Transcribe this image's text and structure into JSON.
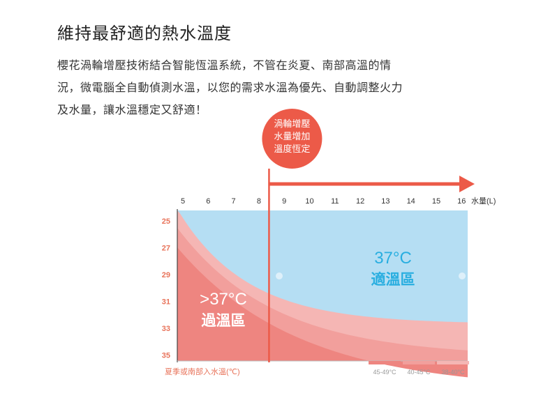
{
  "heading": "維持最舒適的熱水溫度",
  "description_lines": [
    "櫻花渦輪增壓技術結合智能恆溫系統，不管在炎夏、南部高溫的情",
    "況，微電腦全自動偵測水溫，以您的需求水溫為優先、自動調整火力",
    "及水量，讓水溫穩定又舒適！"
  ],
  "chart_data": {
    "type": "area",
    "x_ticks": [
      5,
      6,
      7,
      8,
      9,
      10,
      11,
      12,
      13,
      14,
      15,
      16
    ],
    "x_unit_label": "水量(L)",
    "y_ticks": [
      25,
      27,
      29,
      31,
      33,
      35
    ],
    "y_axis_label": "夏季或南部入水溫(℃)",
    "xlim": [
      4.9,
      16.3
    ],
    "ylim": [
      24.5,
      35.7
    ],
    "marker_x": 8.4,
    "callout_lines": [
      "渦輪增壓",
      "水量增加",
      "溫度恆定"
    ],
    "comfort_zone": {
      "temp": "37°C",
      "name": "適溫區"
    },
    "overheat_zone": {
      "temp": ">37°C",
      "name": "過溫區"
    },
    "legend": [
      {
        "label": "45-49°C",
        "color": "#ee8580"
      },
      {
        "label": "40-45°C",
        "color": "#f29f9c"
      },
      {
        "label": "38-40°C",
        "color": "#f5b6b4"
      }
    ],
    "colors": {
      "comfort": "#b5def3",
      "band_light": "#f5b6b4",
      "band_mid": "#f29f9c",
      "band_dark": "#ee8580",
      "accent": "#ec5a48",
      "comfort_text": "#29aee0",
      "tick_text": "#333333",
      "y_tick_text": "#e8735a"
    }
  }
}
